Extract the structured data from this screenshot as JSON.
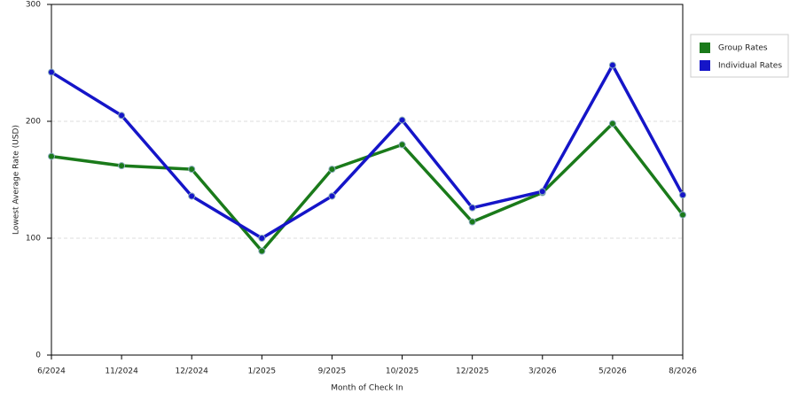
{
  "chart_data": {
    "type": "line",
    "x_label": "Month of Check In",
    "y_label": "Lowest Average Rate (USD)",
    "categories": [
      "6/2024",
      "11/2024",
      "12/2024",
      "1/2025",
      "9/2025",
      "10/2025",
      "12/2025",
      "3/2026",
      "5/2026",
      "8/2026"
    ],
    "series": [
      {
        "name": "Group Rates",
        "color": "#1a7a1a",
        "values": [
          170,
          162,
          159,
          89,
          159,
          180,
          114,
          139,
          198,
          120
        ]
      },
      {
        "name": "Individual Rates",
        "color": "#1515c8",
        "values": [
          242,
          205,
          136,
          100,
          136,
          201,
          126,
          140,
          248,
          137
        ]
      }
    ],
    "ylim": [
      0,
      300
    ],
    "yticks": [
      0,
      100,
      200,
      300
    ],
    "grid": true,
    "legend": "right"
  }
}
